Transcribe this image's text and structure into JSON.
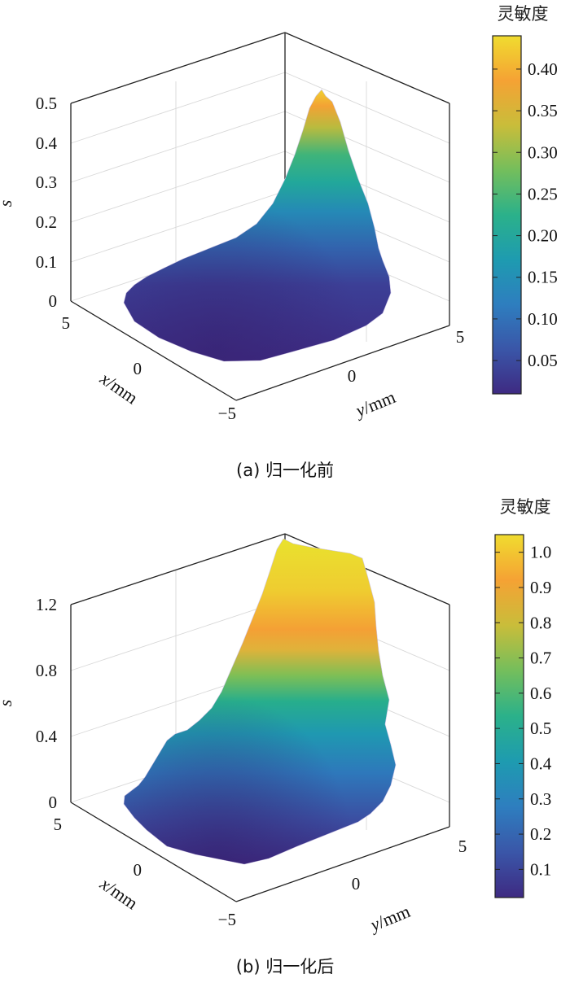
{
  "chart_data": [
    {
      "type": "surface3d",
      "panel": "a",
      "caption": "(a) 归一化前",
      "zlabel": "s",
      "xlabel_italic": "x",
      "xlabel_unit": "/mm",
      "ylabel_italic": "y",
      "ylabel_unit": "/mm",
      "x_ticks": [
        "5",
        "0",
        "−5"
      ],
      "y_ticks": [
        "0",
        "5"
      ],
      "z_ticks": [
        "0",
        "0.1",
        "0.2",
        "0.3",
        "0.4",
        "0.5"
      ],
      "zlim": [
        0,
        0.5
      ],
      "xlim": [
        -5,
        5
      ],
      "ylim": [
        -5,
        5
      ],
      "peak_value": 0.44,
      "colorbar": {
        "title": "灵敏度",
        "range": [
          0.01,
          0.44
        ],
        "ticks": [
          "0.05",
          "0.10",
          "0.15",
          "0.20",
          "0.25",
          "0.30",
          "0.35",
          "0.40"
        ],
        "tick_values": [
          0.05,
          0.1,
          0.15,
          0.2,
          0.25,
          0.3,
          0.35,
          0.4
        ]
      }
    },
    {
      "type": "surface3d",
      "panel": "b",
      "caption": "(b) 归一化后",
      "zlabel": "s",
      "xlabel_italic": "x",
      "xlabel_unit": "/mm",
      "ylabel_italic": "y",
      "ylabel_unit": "/mm",
      "x_ticks": [
        "5",
        "0",
        "−5"
      ],
      "y_ticks": [
        "0",
        "5"
      ],
      "z_ticks": [
        "0",
        "0.4",
        "0.8",
        "1.2"
      ],
      "zlim": [
        0,
        1.2
      ],
      "xlim": [
        -5,
        5
      ],
      "ylim": [
        -5,
        5
      ],
      "peak_value": 1.03,
      "colorbar": {
        "title": "灵敏度",
        "range": [
          0.02,
          1.05
        ],
        "ticks": [
          "0.1",
          "0.2",
          "0.3",
          "0.4",
          "0.5",
          "0.6",
          "0.7",
          "0.8",
          "0.9",
          "1.0"
        ],
        "tick_values": [
          0.1,
          0.2,
          0.3,
          0.4,
          0.5,
          0.6,
          0.7,
          0.8,
          0.9,
          1.0
        ]
      }
    }
  ],
  "colormap": [
    "#3e2a82",
    "#3a56a8",
    "#2e7ebf",
    "#1e9bb0",
    "#2bb18a",
    "#74be5c",
    "#c9bd3a",
    "#f5a234",
    "#f0dc2f"
  ]
}
